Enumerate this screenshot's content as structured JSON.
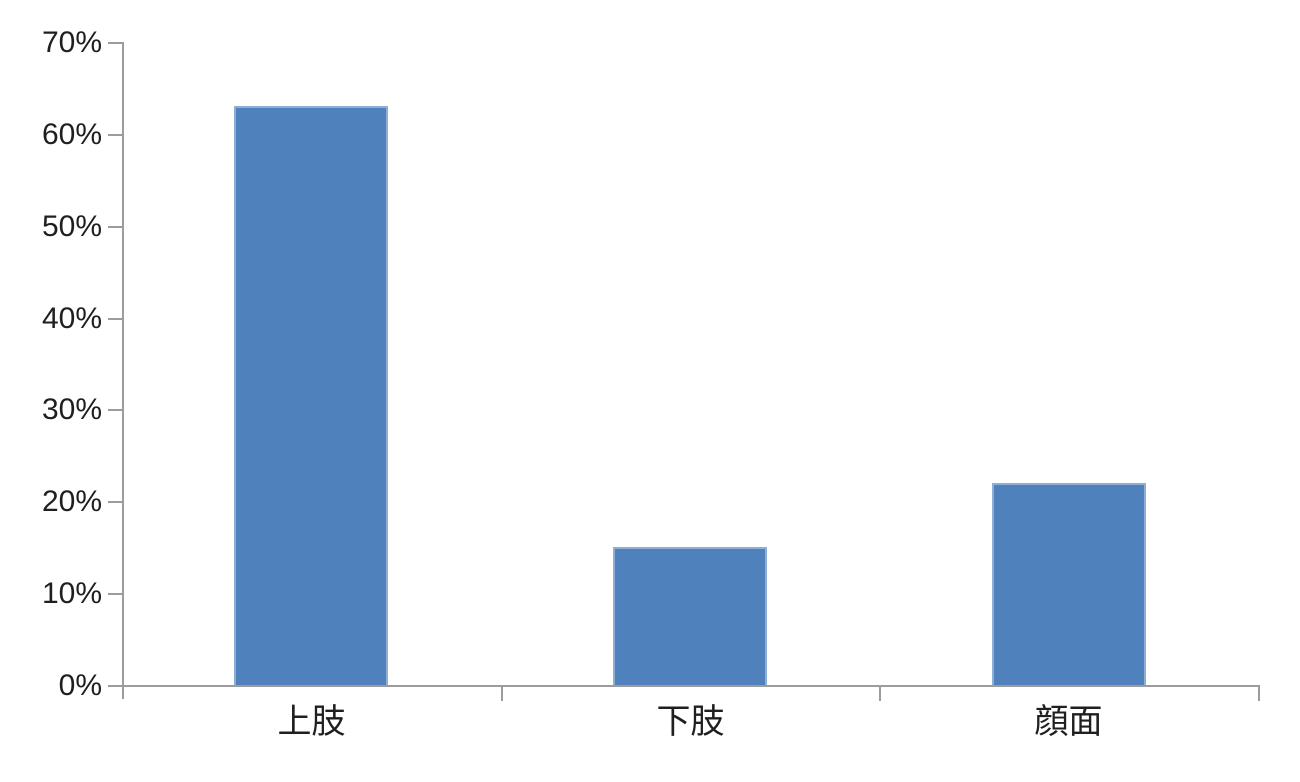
{
  "chart_data": {
    "type": "bar",
    "title": "",
    "xlabel": "",
    "ylabel": "",
    "categories": [
      "上肢",
      "下肢",
      "顔面"
    ],
    "values": [
      63,
      15,
      22
    ],
    "value_unit": "%",
    "ylim": [
      0,
      70
    ],
    "y_tick_step": 10,
    "y_tick_labels": [
      "0%",
      "10%",
      "20%",
      "30%",
      "40%",
      "50%",
      "60%",
      "70%"
    ],
    "grid": false,
    "legend": false,
    "colors": {
      "bar_fill": "#4f81bd",
      "bar_border": "#8faed6",
      "axis": "#9c9c9c",
      "text": "#1f1f1f",
      "background": "#ffffff"
    }
  }
}
